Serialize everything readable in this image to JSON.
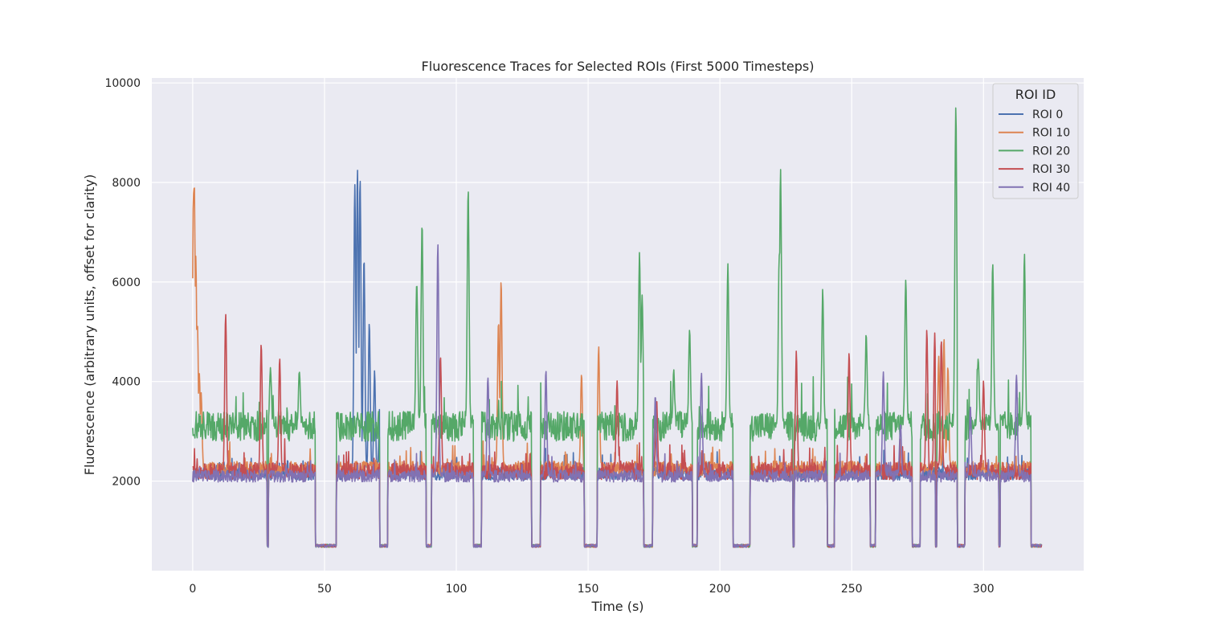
{
  "chart_data": {
    "type": "line",
    "title": "Fluorescence Traces for Selected ROIs (First 5000 Timesteps)",
    "xlabel": "Time (s)",
    "ylabel": "Fluorescence (arbitrary units, offset for clarity)",
    "xlim": [
      -15.5,
      338
    ],
    "ylim": [
      200,
      10100
    ],
    "x_ticks": [
      0,
      50,
      100,
      150,
      200,
      250,
      300
    ],
    "y_ticks": [
      2000,
      4000,
      6000,
      8000,
      10000
    ],
    "grid": true,
    "legend_title": "ROI ID",
    "legend_position": "top-right",
    "x_range": [
      0,
      322
    ],
    "gaps": [
      [
        46.5,
        54.5
      ],
      [
        71,
        74
      ],
      [
        88.5,
        90.5
      ],
      [
        106.5,
        109.5
      ],
      [
        128.5,
        132
      ],
      [
        148.5,
        153.5
      ],
      [
        171,
        174.5
      ],
      [
        189.5,
        191.5
      ],
      [
        205,
        211.5
      ],
      [
        241,
        243.5
      ],
      [
        257,
        259
      ],
      [
        273,
        276
      ],
      [
        290,
        293
      ],
      [
        318,
        322
      ]
    ],
    "gap_level": 700,
    "dips": [
      28.5,
      90,
      191,
      228,
      241,
      282,
      291,
      306
    ],
    "series": [
      {
        "name": "ROI 0",
        "color": "#4c72b0",
        "baseline": 2150,
        "noise": 130,
        "peaks": [
          [
            61.5,
            8000
          ],
          [
            62.5,
            8250
          ],
          [
            63.5,
            8100
          ],
          [
            65,
            6500
          ],
          [
            67,
            5200
          ],
          [
            69,
            4200
          ],
          [
            71,
            3600
          ]
        ]
      },
      {
        "name": "ROI 10",
        "color": "#dd8452",
        "baseline": 2250,
        "noise": 150,
        "peaks": [
          [
            0.3,
            7800
          ],
          [
            0.6,
            8050
          ],
          [
            1.2,
            6500
          ],
          [
            1.8,
            5200
          ],
          [
            2.5,
            4200
          ],
          [
            3.2,
            3800
          ],
          [
            117,
            6050
          ],
          [
            116,
            5200
          ],
          [
            154,
            4700
          ],
          [
            147.5,
            4150
          ],
          [
            283,
            4500
          ],
          [
            285,
            4900
          ],
          [
            286.5,
            4300
          ]
        ]
      },
      {
        "name": "ROI 20",
        "color": "#55a868",
        "baseline": 3100,
        "noise": 300,
        "peaks": [
          [
            29.5,
            4300
          ],
          [
            40.5,
            4200
          ],
          [
            87,
            7150
          ],
          [
            85,
            6050
          ],
          [
            104.5,
            7900
          ],
          [
            169.5,
            6600
          ],
          [
            170.5,
            5700
          ],
          [
            182.5,
            4150
          ],
          [
            188.5,
            5000
          ],
          [
            203,
            6300
          ],
          [
            223,
            8250
          ],
          [
            222.5,
            6500
          ],
          [
            239,
            5850
          ],
          [
            255.5,
            4950
          ],
          [
            270.5,
            6000
          ],
          [
            289.5,
            9600
          ],
          [
            303.5,
            6400
          ],
          [
            315.5,
            6550
          ],
          [
            298,
            4500
          ]
        ]
      },
      {
        "name": "ROI 30",
        "color": "#c44e52",
        "baseline": 2200,
        "noise": 170,
        "peaks": [
          [
            12.5,
            5400
          ],
          [
            26,
            4780
          ],
          [
            33,
            4450
          ],
          [
            94,
            4500
          ],
          [
            161,
            4000
          ],
          [
            176,
            3600
          ],
          [
            229,
            4580
          ],
          [
            249,
            4530
          ],
          [
            278.5,
            5050
          ],
          [
            281.5,
            4950
          ],
          [
            284,
            4850
          ],
          [
            300,
            4000
          ]
        ]
      },
      {
        "name": "ROI 40",
        "color": "#8172b3",
        "baseline": 2100,
        "noise": 120,
        "peaks": [
          [
            93,
            6800
          ],
          [
            112,
            4100
          ],
          [
            134,
            4200
          ],
          [
            175.5,
            3700
          ],
          [
            193,
            4200
          ],
          [
            262,
            4200
          ],
          [
            268.5,
            3150
          ],
          [
            312.5,
            4150
          ],
          [
            295,
            3500
          ]
        ]
      }
    ]
  }
}
